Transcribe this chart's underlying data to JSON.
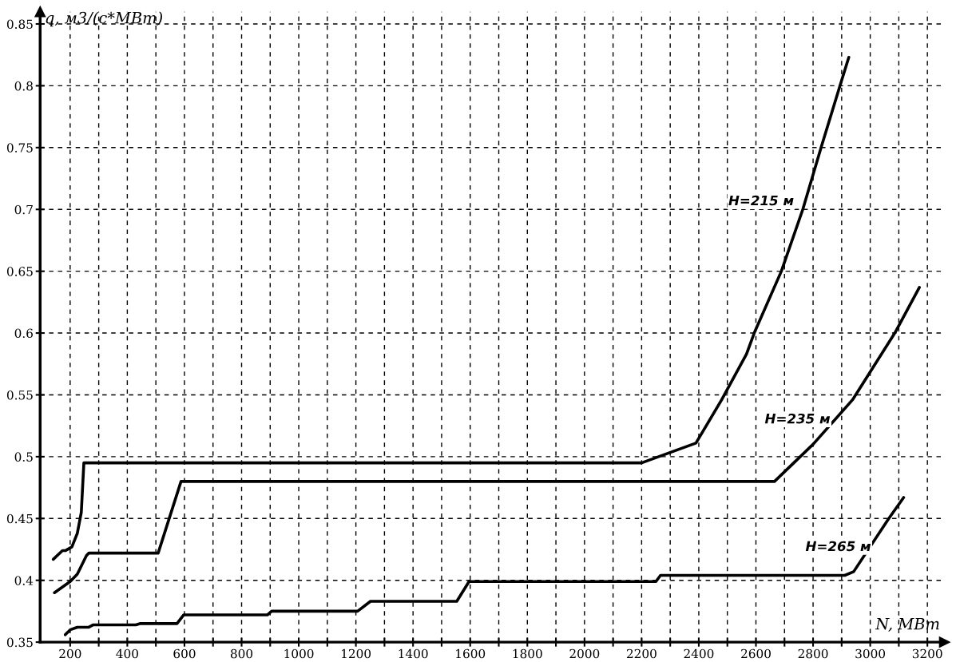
{
  "chart_data": {
    "type": "line",
    "xlabel": "N, МВт",
    "ylabel": "q, м3/(с*МВт)",
    "xlim": [
      95,
      3260
    ],
    "ylim": [
      0.35,
      0.86
    ],
    "xticks": [
      200,
      {
        "value": 300,
        "label": null
      },
      400,
      {
        "value": 500,
        "label": null
      },
      600,
      {
        "value": 700,
        "label": null
      },
      800,
      {
        "value": 900,
        "label": null
      },
      1000,
      {
        "value": 1100,
        "label": null
      },
      1200,
      {
        "value": 1300,
        "label": null
      },
      1400,
      {
        "value": 1500,
        "label": null
      },
      1600,
      {
        "value": 1700,
        "label": null
      },
      1800,
      {
        "value": 1900,
        "label": null
      },
      2000,
      {
        "value": 2100,
        "label": null
      },
      2200,
      {
        "value": 2300,
        "label": null
      },
      2400,
      {
        "value": 2500,
        "label": null
      },
      2600,
      {
        "value": 2700,
        "label": null
      },
      2800,
      {
        "value": 2900,
        "label": null
      },
      3000,
      {
        "value": 3100,
        "label": null
      },
      3200
    ],
    "yticks": [
      0.35,
      0.4,
      0.45,
      0.5,
      0.55,
      0.6,
      0.65,
      0.7,
      0.75,
      0.8,
      0.85
    ],
    "grid": true,
    "legend": false,
    "marker": "none",
    "line_style": "solid",
    "series": [
      {
        "name": "H=215 м",
        "color": "#000000",
        "x": [
          141,
          173,
          183,
          206,
          225,
          239,
          248,
          2200,
          2390,
          2480,
          2567,
          2594,
          2689,
          2764,
          2828,
          2894,
          2925
        ],
        "values": [
          0.417,
          0.424,
          0.424,
          0.427,
          0.438,
          0.455,
          0.495,
          0.495,
          0.511,
          0.546,
          0.583,
          0.6,
          0.65,
          0.7,
          0.75,
          0.8,
          0.823
        ]
      },
      {
        "name": "H=235 м",
        "color": "#000000",
        "x": [
          145,
          200,
          225,
          257,
          265,
          508,
          588,
          2665,
          2800,
          2938,
          3086,
          3172
        ],
        "values": [
          0.39,
          0.399,
          0.405,
          0.42,
          0.422,
          0.422,
          0.48,
          0.48,
          0.51,
          0.546,
          0.6,
          0.637
        ]
      },
      {
        "name": "H=265 м",
        "color": "#000000",
        "x": [
          183,
          200,
          225,
          264,
          281,
          430,
          444,
          574,
          597,
          890,
          905,
          1206,
          1251,
          1553,
          1596,
          2250,
          2266,
          2911,
          2942,
          3065,
          3117
        ],
        "values": [
          0.356,
          0.36,
          0.362,
          0.362,
          0.364,
          0.364,
          0.365,
          0.365,
          0.372,
          0.372,
          0.375,
          0.375,
          0.383,
          0.383,
          0.399,
          0.399,
          0.404,
          0.404,
          0.407,
          0.45,
          0.467
        ]
      }
    ]
  }
}
